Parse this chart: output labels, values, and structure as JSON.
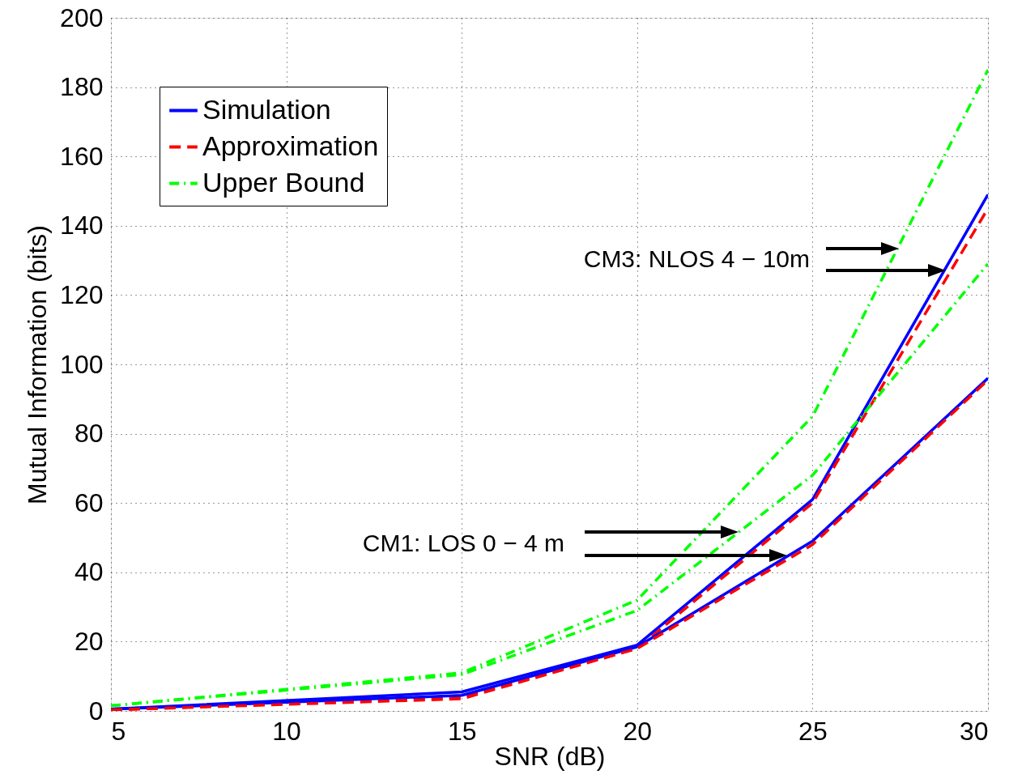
{
  "chart_data": {
    "type": "line",
    "xlabel": "SNR (dB)",
    "ylabel": "Mutual Information (bits)",
    "x": [
      5,
      15,
      20,
      25,
      30
    ],
    "xlim": [
      5,
      30
    ],
    "xticks": [
      5,
      10,
      15,
      20,
      25,
      30
    ],
    "ylim": [
      0,
      200
    ],
    "yticks": [
      0,
      20,
      40,
      60,
      80,
      100,
      120,
      140,
      160,
      180,
      200
    ],
    "grid": true,
    "legend": "top left",
    "marker": "none",
    "series": [
      {
        "name": "Simulation",
        "color": "#0000ff",
        "line_style": "solid",
        "values": [
          0.5,
          5.5,
          19,
          61,
          149
        ]
      },
      {
        "name": "Approximation",
        "color": "#ff0000",
        "line_style": "dashed",
        "values": [
          0.3,
          4,
          18,
          60,
          145
        ]
      },
      {
        "name": "Upper Bound",
        "color": "#00ff00",
        "line_style": "dashdot",
        "values": [
          1.5,
          11,
          32,
          85,
          185
        ]
      },
      {
        "color": "#0000ff",
        "line_style": "solid",
        "values": [
          0.5,
          4.5,
          18.5,
          49,
          96
        ]
      },
      {
        "color": "#ff0000",
        "line_style": "dashed",
        "values": [
          0.3,
          3.5,
          18,
          48,
          95.5
        ]
      },
      {
        "color": "#00ff00",
        "line_style": "dashdot",
        "values": [
          1.5,
          10.5,
          29,
          68,
          129
        ]
      }
    ],
    "annotations": [
      "CM3: NLOS 4 − 10m",
      "CM1: LOS 0 − 4 m"
    ]
  }
}
